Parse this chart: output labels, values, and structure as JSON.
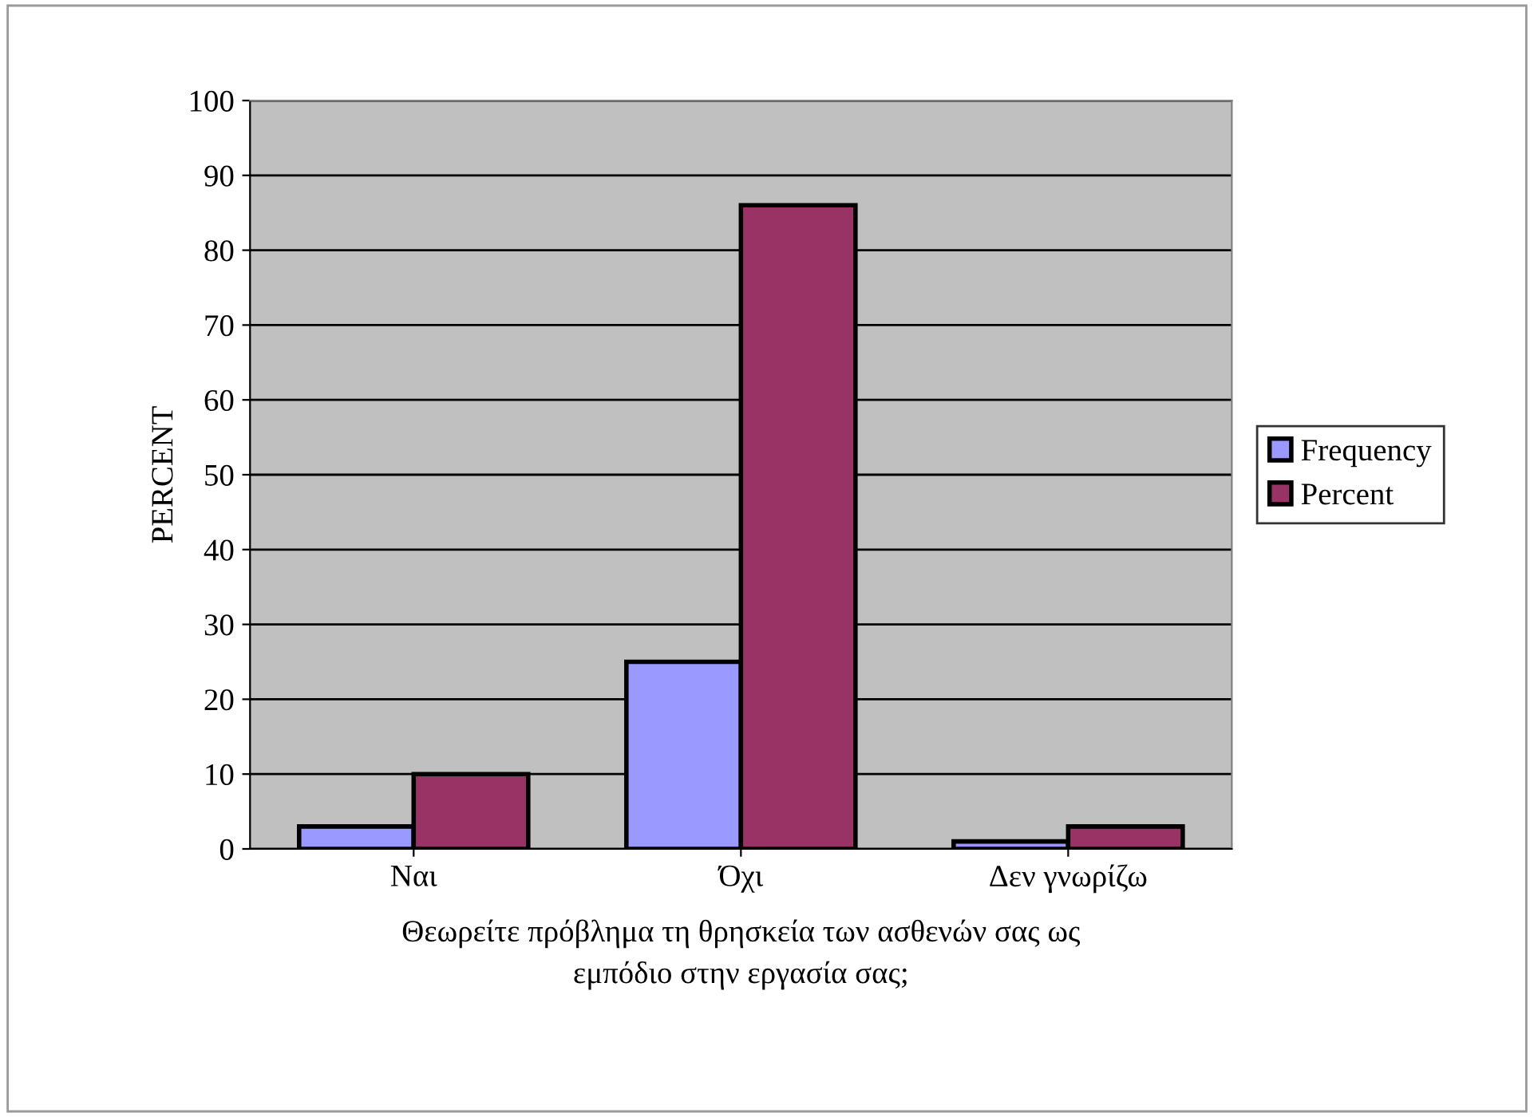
{
  "chart_data": {
    "type": "bar",
    "xlabel": "Θεωρείτε πρόβλημα τη θρησκεία των ασθενών σας ως\nεμπόδιο στην εργασία σας;",
    "ylabel": "PERCENT",
    "categories": [
      "Ναι",
      "Όχι",
      "Δεν γνωρίζω"
    ],
    "series": [
      {
        "name": "Frequency",
        "color": "#9999ff",
        "values": [
          3,
          25,
          1
        ]
      },
      {
        "name": "Percent",
        "color": "#993366",
        "values": [
          10,
          86,
          3
        ]
      }
    ],
    "ylim": [
      0,
      100
    ],
    "yticks": [
      0,
      10,
      20,
      30,
      40,
      50,
      60,
      70,
      80,
      90,
      100
    ],
    "grid": "y",
    "legend": "right"
  }
}
